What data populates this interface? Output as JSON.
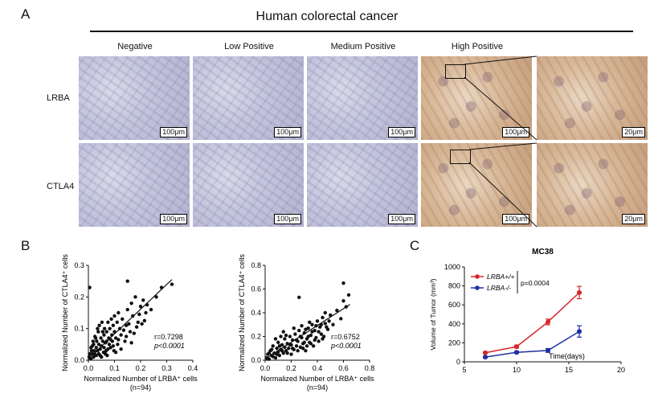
{
  "panelA": {
    "letter": "A",
    "title": "Human colorectal cancer",
    "columns": [
      "Negative",
      "Low Positive",
      "Medium Positive",
      "High Positive"
    ],
    "rows": [
      "LRBA",
      "CTLA4"
    ],
    "scale_large": "100μm",
    "scale_small": "20μm"
  },
  "panelB": {
    "letter": "B"
  },
  "panelC": {
    "letter": "C"
  },
  "chart_data": [
    {
      "type": "scatter",
      "ylabel": "Normalized Number of CTLA4⁺ cells",
      "xlabel": "Normalized Number of LRBA⁺ cells",
      "note": "(n=94)",
      "stat_r": "r=0.7298",
      "stat_p": "p<0.0001",
      "xlim": [
        0,
        0.4
      ],
      "ylim": [
        0,
        0.3
      ],
      "xticks": [
        "0.0",
        "0.1",
        "0.2",
        "0.3",
        "0.4"
      ],
      "yticks": [
        "0.0",
        "0.1",
        "0.2",
        "0.3"
      ],
      "fit": [
        [
          0.0,
          0.005
        ],
        [
          0.32,
          0.255
        ]
      ],
      "points": [
        [
          0.003,
          0.01
        ],
        [
          0.005,
          0.02
        ],
        [
          0.008,
          0.005
        ],
        [
          0.01,
          0.04
        ],
        [
          0.012,
          0.03
        ],
        [
          0.015,
          0.02
        ],
        [
          0.018,
          0.06
        ],
        [
          0.02,
          0.01
        ],
        [
          0.02,
          0.05
        ],
        [
          0.022,
          0.03
        ],
        [
          0.025,
          0.02
        ],
        [
          0.028,
          0.07
        ],
        [
          0.03,
          0.04
        ],
        [
          0.03,
          0.015
        ],
        [
          0.032,
          0.06
        ],
        [
          0.035,
          0.03
        ],
        [
          0.038,
          0.09
        ],
        [
          0.04,
          0.05
        ],
        [
          0.04,
          0.02
        ],
        [
          0.042,
          0.11
        ],
        [
          0.045,
          0.035
        ],
        [
          0.048,
          0.07
        ],
        [
          0.05,
          0.045
        ],
        [
          0.05,
          0.01
        ],
        [
          0.052,
          0.12
        ],
        [
          0.055,
          0.06
        ],
        [
          0.058,
          0.025
        ],
        [
          0.06,
          0.08
        ],
        [
          0.06,
          0.04
        ],
        [
          0.062,
          0.1
        ],
        [
          0.065,
          0.055
        ],
        [
          0.068,
          0.03
        ],
        [
          0.07,
          0.09
        ],
        [
          0.07,
          0.06
        ],
        [
          0.072,
          0.015
        ],
        [
          0.075,
          0.12
        ],
        [
          0.078,
          0.07
        ],
        [
          0.08,
          0.05
        ],
        [
          0.082,
          0.1
        ],
        [
          0.085,
          0.04
        ],
        [
          0.088,
          0.13
        ],
        [
          0.09,
          0.08
        ],
        [
          0.092,
          0.06
        ],
        [
          0.095,
          0.11
        ],
        [
          0.098,
          0.03
        ],
        [
          0.1,
          0.09
        ],
        [
          0.1,
          0.14
        ],
        [
          0.105,
          0.07
        ],
        [
          0.11,
          0.12
        ],
        [
          0.112,
          0.05
        ],
        [
          0.115,
          0.15
        ],
        [
          0.12,
          0.1
        ],
        [
          0.125,
          0.08
        ],
        [
          0.13,
          0.13
        ],
        [
          0.14,
          0.06
        ],
        [
          0.145,
          0.11
        ],
        [
          0.15,
          0.16
        ],
        [
          0.16,
          0.09
        ],
        [
          0.165,
          0.18
        ],
        [
          0.17,
          0.14
        ],
        [
          0.18,
          0.2
        ],
        [
          0.19,
          0.12
        ],
        [
          0.2,
          0.17
        ],
        [
          0.21,
          0.19
        ],
        [
          0.22,
          0.15
        ],
        [
          0.28,
          0.23
        ],
        [
          0.32,
          0.24
        ],
        [
          0.26,
          0.2
        ],
        [
          0.15,
          0.25
        ],
        [
          0.005,
          0.23
        ],
        [
          0.01,
          0.005
        ],
        [
          0.015,
          0.045
        ],
        [
          0.025,
          0.075
        ],
        [
          0.035,
          0.1
        ],
        [
          0.045,
          0.015
        ],
        [
          0.055,
          0.09
        ],
        [
          0.065,
          0.02
        ],
        [
          0.075,
          0.035
        ],
        [
          0.085,
          0.065
        ],
        [
          0.095,
          0.045
        ],
        [
          0.105,
          0.025
        ],
        [
          0.115,
          0.065
        ],
        [
          0.125,
          0.035
        ],
        [
          0.135,
          0.095
        ],
        [
          0.145,
          0.075
        ],
        [
          0.155,
          0.115
        ],
        [
          0.165,
          0.055
        ],
        [
          0.175,
          0.085
        ],
        [
          0.185,
          0.105
        ],
        [
          0.195,
          0.145
        ],
        [
          0.205,
          0.115
        ],
        [
          0.215,
          0.125
        ],
        [
          0.225,
          0.175
        ],
        [
          0.24,
          0.16
        ]
      ]
    },
    {
      "type": "scatter",
      "ylabel": "Normalized Number of CTLA4⁺ cells",
      "xlabel": "Normalized Number of LRBA⁺ cells",
      "note": "(n=94)",
      "stat_r": "r=0.6752",
      "stat_p": "p<0.0001",
      "xlim": [
        0,
        0.8
      ],
      "ylim": [
        0,
        0.8
      ],
      "xticks": [
        "0.0",
        "0.2",
        "0.4",
        "0.6",
        "0.8"
      ],
      "yticks": [
        "0.0",
        "0.2",
        "0.4",
        "0.6",
        "0.8"
      ],
      "fit": [
        [
          0.0,
          0.01
        ],
        [
          0.65,
          0.47
        ]
      ],
      "points": [
        [
          0.01,
          0.02
        ],
        [
          0.02,
          0.05
        ],
        [
          0.03,
          0.01
        ],
        [
          0.04,
          0.08
        ],
        [
          0.05,
          0.04
        ],
        [
          0.06,
          0.12
        ],
        [
          0.07,
          0.06
        ],
        [
          0.08,
          0.02
        ],
        [
          0.09,
          0.1
        ],
        [
          0.1,
          0.07
        ],
        [
          0.1,
          0.15
        ],
        [
          0.11,
          0.04
        ],
        [
          0.12,
          0.09
        ],
        [
          0.13,
          0.13
        ],
        [
          0.14,
          0.06
        ],
        [
          0.15,
          0.11
        ],
        [
          0.15,
          0.18
        ],
        [
          0.16,
          0.08
        ],
        [
          0.17,
          0.14
        ],
        [
          0.18,
          0.1
        ],
        [
          0.19,
          0.2
        ],
        [
          0.2,
          0.05
        ],
        [
          0.2,
          0.13
        ],
        [
          0.21,
          0.17
        ],
        [
          0.22,
          0.09
        ],
        [
          0.23,
          0.22
        ],
        [
          0.24,
          0.12
        ],
        [
          0.25,
          0.16
        ],
        [
          0.26,
          0.25
        ],
        [
          0.27,
          0.11
        ],
        [
          0.28,
          0.19
        ],
        [
          0.29,
          0.14
        ],
        [
          0.3,
          0.23
        ],
        [
          0.31,
          0.08
        ],
        [
          0.32,
          0.18
        ],
        [
          0.33,
          0.27
        ],
        [
          0.34,
          0.15
        ],
        [
          0.35,
          0.21
        ],
        [
          0.36,
          0.3
        ],
        [
          0.37,
          0.12
        ],
        [
          0.38,
          0.25
        ],
        [
          0.39,
          0.19
        ],
        [
          0.4,
          0.33
        ],
        [
          0.41,
          0.16
        ],
        [
          0.42,
          0.28
        ],
        [
          0.43,
          0.22
        ],
        [
          0.44,
          0.36
        ],
        [
          0.45,
          0.2
        ],
        [
          0.46,
          0.31
        ],
        [
          0.48,
          0.26
        ],
        [
          0.5,
          0.38
        ],
        [
          0.52,
          0.3
        ],
        [
          0.55,
          0.42
        ],
        [
          0.58,
          0.35
        ],
        [
          0.6,
          0.5
        ],
        [
          0.62,
          0.45
        ],
        [
          0.6,
          0.65
        ],
        [
          0.64,
          0.55
        ],
        [
          0.26,
          0.53
        ],
        [
          0.08,
          0.18
        ],
        [
          0.12,
          0.2
        ],
        [
          0.14,
          0.24
        ],
        [
          0.05,
          0.09
        ],
        [
          0.03,
          0.06
        ],
        [
          0.06,
          0.03
        ],
        [
          0.09,
          0.05
        ],
        [
          0.11,
          0.12
        ],
        [
          0.13,
          0.08
        ],
        [
          0.16,
          0.21
        ],
        [
          0.17,
          0.06
        ],
        [
          0.19,
          0.13
        ],
        [
          0.21,
          0.1
        ],
        [
          0.22,
          0.27
        ],
        [
          0.24,
          0.17
        ],
        [
          0.25,
          0.08
        ],
        [
          0.27,
          0.2
        ],
        [
          0.28,
          0.29
        ],
        [
          0.29,
          0.1
        ],
        [
          0.3,
          0.15
        ],
        [
          0.31,
          0.26
        ],
        [
          0.32,
          0.12
        ],
        [
          0.33,
          0.2
        ],
        [
          0.34,
          0.32
        ],
        [
          0.35,
          0.14
        ],
        [
          0.36,
          0.24
        ],
        [
          0.38,
          0.17
        ],
        [
          0.39,
          0.29
        ],
        [
          0.41,
          0.24
        ],
        [
          0.43,
          0.3
        ],
        [
          0.44,
          0.18
        ],
        [
          0.46,
          0.4
        ],
        [
          0.47,
          0.28
        ],
        [
          0.49,
          0.33
        ],
        [
          0.02,
          0.01
        ]
      ]
    },
    {
      "type": "line",
      "title": "MC38",
      "xlabel": "Time(days)",
      "ylabel": "Volume of Tumor (mm³)",
      "xlim": [
        5,
        20
      ],
      "ylim": [
        0,
        1000
      ],
      "xticks": [
        "5",
        "10",
        "15",
        "20"
      ],
      "yticks": [
        "0",
        "200",
        "400",
        "600",
        "800",
        "1000"
      ],
      "pvalue": "p=0.0004",
      "series": [
        {
          "name": "LRBA+/+",
          "color": "#d7262b",
          "x": [
            7,
            10,
            13,
            16
          ],
          "values": [
            95,
            160,
            420,
            730
          ],
          "err": [
            10,
            15,
            30,
            65
          ]
        },
        {
          "name": "LRBA-/-",
          "color": "#1f2fa3",
          "x": [
            7,
            10,
            13,
            16
          ],
          "values": [
            50,
            100,
            120,
            320
          ],
          "err": [
            8,
            10,
            20,
            60
          ]
        }
      ]
    }
  ]
}
